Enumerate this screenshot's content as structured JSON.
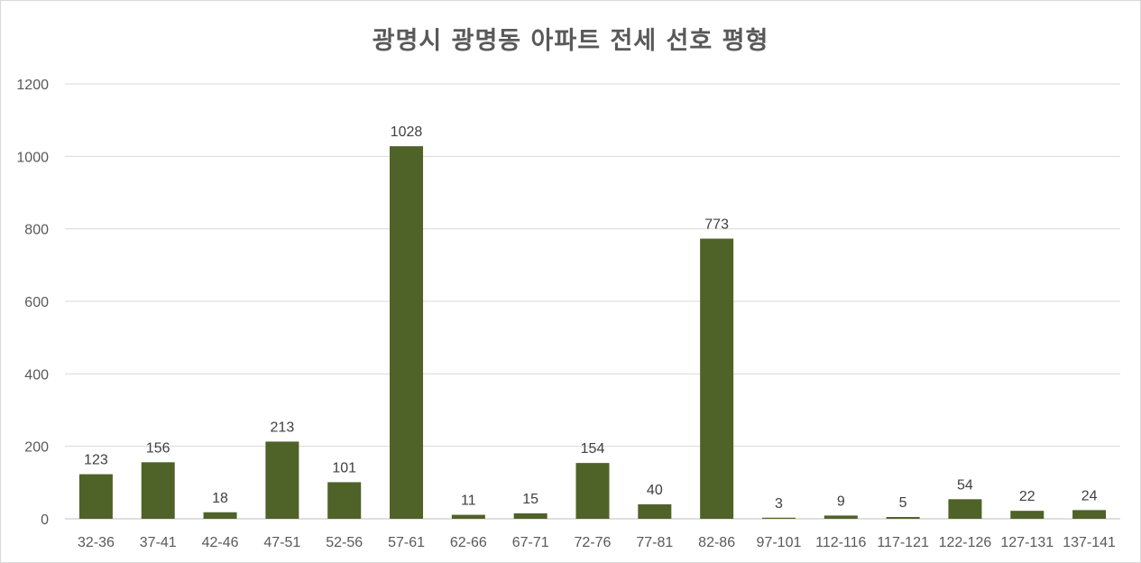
{
  "chart_data": {
    "type": "bar",
    "title": "광명시 광명동 아파트 전세 선호 평형",
    "xlabel": "",
    "ylabel": "",
    "categories": [
      "32-36",
      "37-41",
      "42-46",
      "47-51",
      "52-56",
      "57-61",
      "62-66",
      "67-71",
      "72-76",
      "77-81",
      "82-86",
      "97-101",
      "112-116",
      "117-121",
      "122-126",
      "127-131",
      "137-141"
    ],
    "values": [
      123,
      156,
      18,
      213,
      101,
      1028,
      11,
      15,
      154,
      40,
      773,
      3,
      9,
      5,
      54,
      22,
      24
    ],
    "ylim": [
      0,
      1200
    ],
    "yticks": [
      0,
      200,
      400,
      600,
      800,
      1000,
      1200
    ],
    "grid": true,
    "data_labels": true,
    "legend": "none",
    "bar_color": "#4f6228",
    "grid_color": "#d9d9d9"
  }
}
